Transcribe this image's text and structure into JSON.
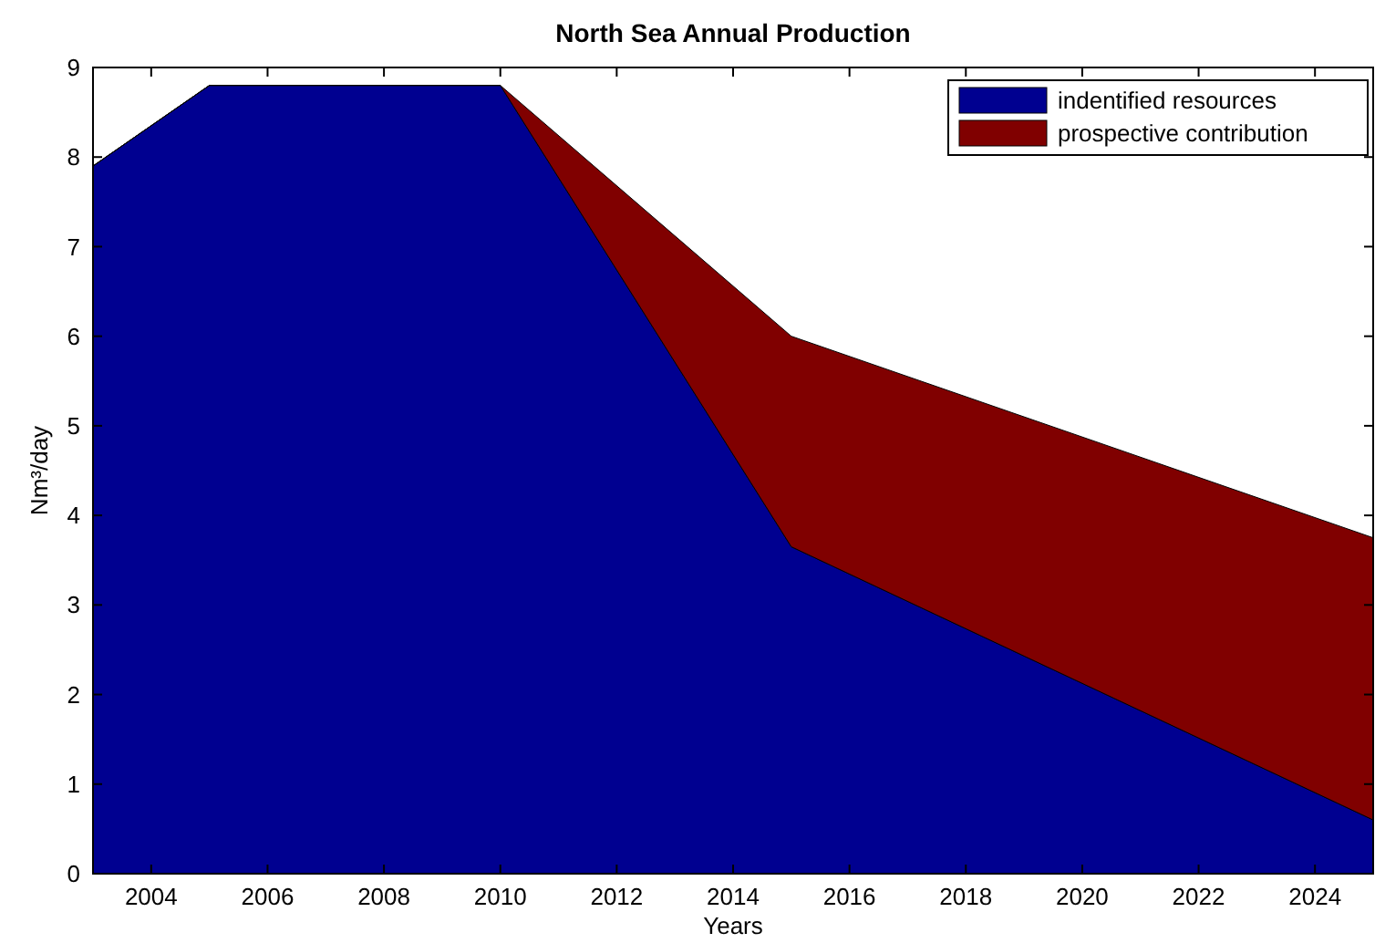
{
  "chart_data": {
    "type": "area",
    "title": "North Sea Annual Production",
    "xlabel": "Years",
    "ylabel": "Nm³/day",
    "stacked": true,
    "x": [
      2003,
      2005,
      2010,
      2015,
      2025
    ],
    "series": [
      {
        "name": "indentified resources",
        "color": "#000090",
        "values": [
          7.9,
          8.8,
          8.8,
          3.65,
          0.6
        ]
      },
      {
        "name": "prospective contribution",
        "color": "#800000",
        "values": [
          0,
          0,
          0,
          2.35,
          3.15
        ]
      }
    ],
    "xlim": [
      2003,
      2025
    ],
    "xticks": [
      2004,
      2006,
      2008,
      2010,
      2012,
      2014,
      2016,
      2018,
      2020,
      2022,
      2024
    ],
    "ylim": [
      0,
      9
    ],
    "yticks": [
      0,
      1,
      2,
      3,
      4,
      5,
      6,
      7,
      8,
      9
    ],
    "legend": "top right",
    "grid": false
  }
}
